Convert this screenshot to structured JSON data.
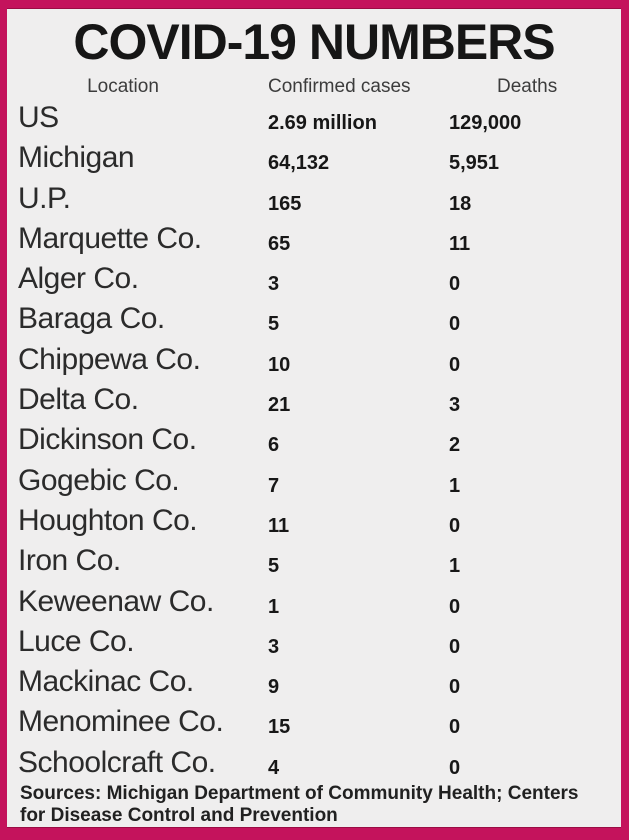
{
  "title": "COVID-19 NUMBERS",
  "table": {
    "headers": {
      "location": "Location",
      "confirmed": "Confirmed cases",
      "deaths": "Deaths"
    },
    "rows": [
      {
        "location": "US",
        "confirmed": "2.69 million",
        "deaths": "129,000"
      },
      {
        "location": "Michigan",
        "confirmed": "64,132",
        "deaths": "5,951"
      },
      {
        "location": "U.P.",
        "confirmed": "165",
        "deaths": "18"
      },
      {
        "location": "Marquette Co.",
        "confirmed": "65",
        "deaths": "11"
      },
      {
        "location": "Alger Co.",
        "confirmed": "3",
        "deaths": "0"
      },
      {
        "location": "Baraga Co.",
        "confirmed": "5",
        "deaths": "0"
      },
      {
        "location": "Chippewa Co.",
        "confirmed": "10",
        "deaths": "0"
      },
      {
        "location": "Delta Co.",
        "confirmed": "21",
        "deaths": "3"
      },
      {
        "location": "Dickinson Co.",
        "confirmed": "6",
        "deaths": "2"
      },
      {
        "location": "Gogebic Co.",
        "confirmed": "7",
        "deaths": "1"
      },
      {
        "location": "Houghton Co.",
        "confirmed": "11",
        "deaths": "0"
      },
      {
        "location": "Iron Co.",
        "confirmed": "5",
        "deaths": "1"
      },
      {
        "location": "Keweenaw Co.",
        "confirmed": "1",
        "deaths": "0"
      },
      {
        "location": "Luce Co.",
        "confirmed": "3",
        "deaths": "0"
      },
      {
        "location": "Mackinac Co.",
        "confirmed": "9",
        "deaths": "0"
      },
      {
        "location": "Menominee Co.",
        "confirmed": "15",
        "deaths": "0"
      },
      {
        "location": "Schoolcraft Co.",
        "confirmed": "4",
        "deaths": "0"
      }
    ]
  },
  "footer": {
    "lines": [
      "Sources: Michigan Department of Community Health; Centers",
      "for Disease Control and Prevention"
    ]
  },
  "colors": {
    "border": "#c4135c",
    "border_dark_edge": "#9a0d44",
    "background": "#efeeee",
    "text": "#1a1a1a"
  },
  "chart_data": {
    "type": "table",
    "title": "COVID-19 NUMBERS",
    "columns": [
      "Location",
      "Confirmed cases",
      "Deaths"
    ],
    "rows": [
      [
        "US",
        "2.69 million",
        "129,000"
      ],
      [
        "Michigan",
        "64,132",
        "5,951"
      ],
      [
        "U.P.",
        "165",
        "18"
      ],
      [
        "Marquette Co.",
        "65",
        "11"
      ],
      [
        "Alger Co.",
        "3",
        "0"
      ],
      [
        "Baraga Co.",
        "5",
        "0"
      ],
      [
        "Chippewa Co.",
        "10",
        "0"
      ],
      [
        "Delta Co.",
        "21",
        "3"
      ],
      [
        "Dickinson Co.",
        "6",
        "2"
      ],
      [
        "Gogebic Co.",
        "7",
        "1"
      ],
      [
        "Houghton Co.",
        "11",
        "0"
      ],
      [
        "Iron Co.",
        "5",
        "1"
      ],
      [
        "Keweenaw Co.",
        "1",
        "0"
      ],
      [
        "Luce Co.",
        "3",
        "0"
      ],
      [
        "Mackinac Co.",
        "9",
        "0"
      ],
      [
        "Menominee Co.",
        "15",
        "0"
      ],
      [
        "Schoolcraft Co.",
        "4",
        "0"
      ]
    ],
    "notes": "Sources: Michigan Department of Community Health; Centers for Disease Control and Prevention"
  }
}
